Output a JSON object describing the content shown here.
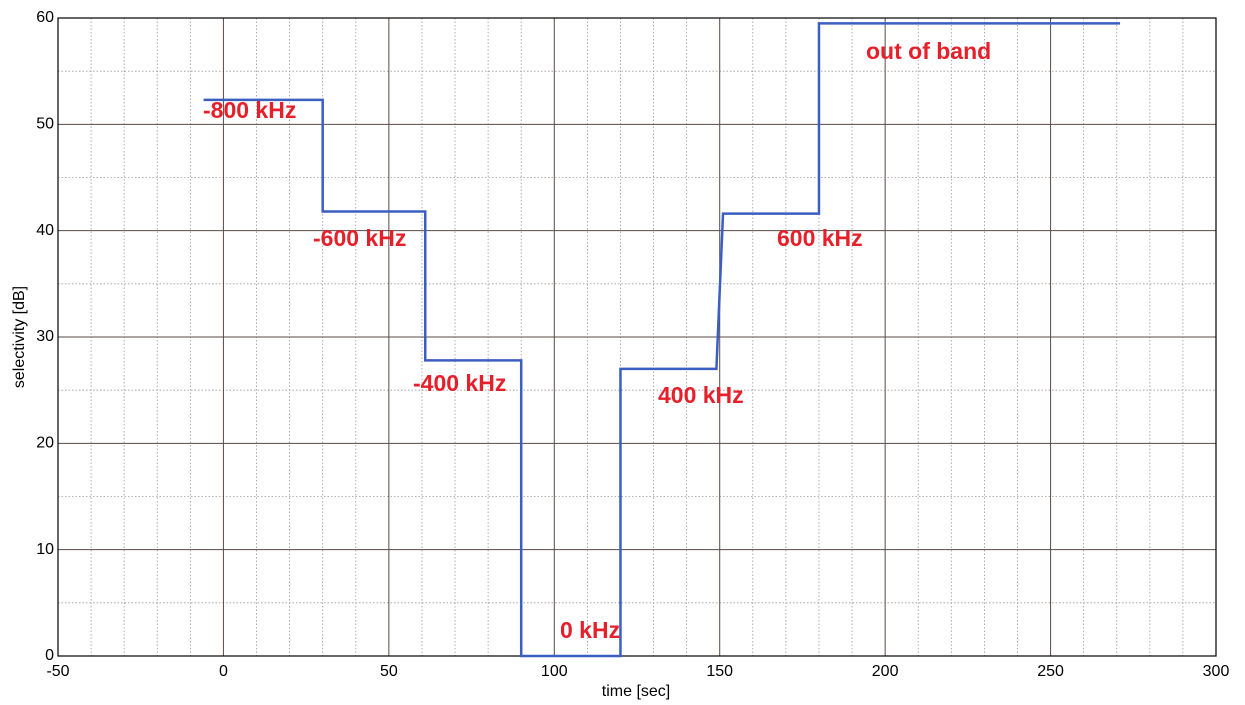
{
  "chart_data": {
    "type": "line",
    "x_label": "time [sec]",
    "y_label": "selectivity [dB]",
    "x": [
      -6,
      30,
      30,
      61,
      61,
      90,
      90,
      120,
      120,
      149,
      151,
      180,
      180,
      271
    ],
    "values": [
      52.3,
      52.3,
      41.8,
      41.8,
      27.8,
      27.8,
      0,
      0,
      27.0,
      27.0,
      41.6,
      41.6,
      59.5,
      59.5
    ],
    "color": "#3b5fc1",
    "xlim": [
      -50,
      300
    ],
    "ylim": [
      0,
      60
    ],
    "xticks": [
      -50,
      0,
      50,
      100,
      150,
      200,
      250,
      300
    ],
    "yticks": [
      0,
      10,
      20,
      30,
      40,
      50,
      60
    ],
    "xminorticks": [
      -40,
      -30,
      -20,
      -10,
      10,
      20,
      30,
      40,
      60,
      70,
      80,
      90,
      110,
      120,
      130,
      140,
      160,
      170,
      180,
      190,
      210,
      220,
      230,
      240,
      260,
      270,
      280,
      290
    ],
    "yminorticks": [
      5,
      15,
      25,
      35,
      45,
      55
    ],
    "grid": true,
    "annotations": [
      "-800 kHz",
      "-600 kHz",
      "-400 kHz",
      "0 kHz",
      "400 kHz",
      "600 kHz",
      "out of band"
    ]
  }
}
